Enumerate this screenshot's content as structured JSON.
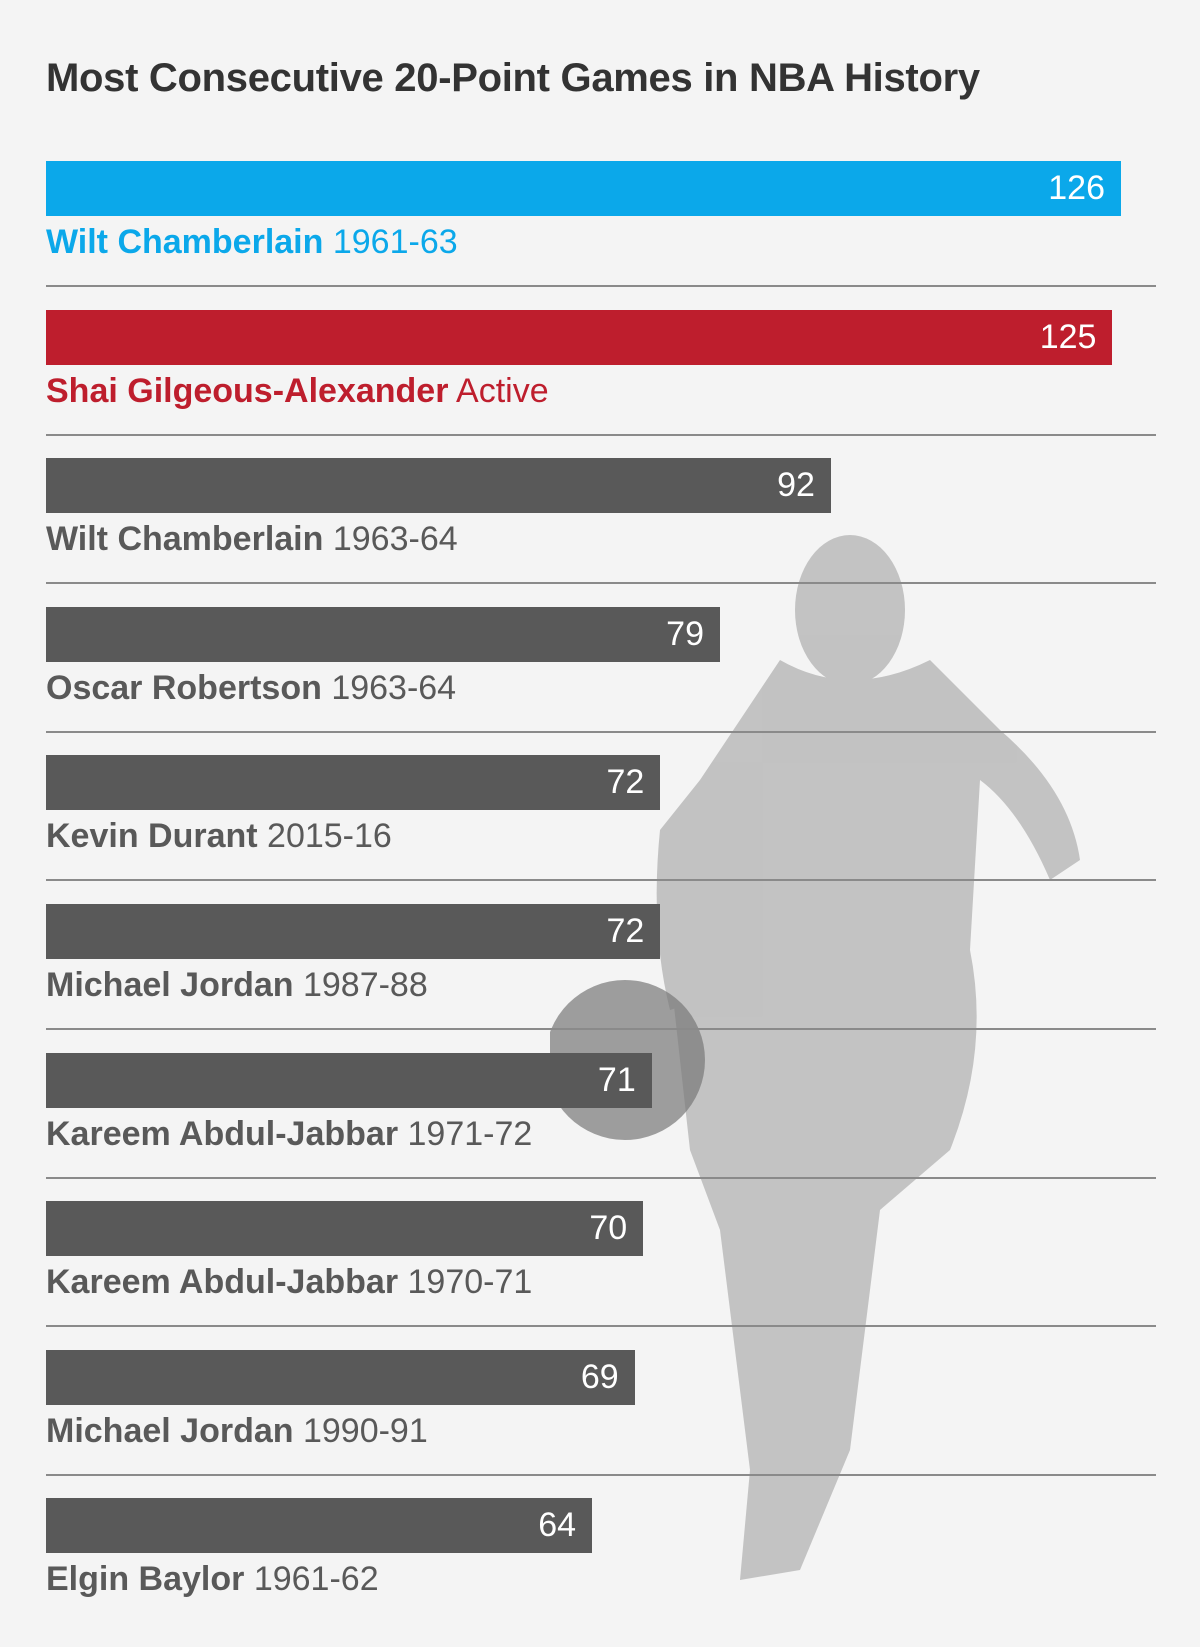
{
  "chart_data": {
    "type": "bar",
    "orientation": "horizontal",
    "title": "Most Consecutive 20-Point Games in NBA History",
    "categories": [
      {
        "player": "Wilt Chamberlain",
        "period": "1961-63"
      },
      {
        "player": "Shai Gilgeous-Alexander",
        "period": "Active"
      },
      {
        "player": "Wilt Chamberlain",
        "period": "1963-64"
      },
      {
        "player": "Oscar Robertson",
        "period": "1963-64"
      },
      {
        "player": "Kevin Durant",
        "period": "2015-16"
      },
      {
        "player": "Michael Jordan",
        "period": "1987-88"
      },
      {
        "player": "Kareem Abdul-Jabbar",
        "period": "1971-72"
      },
      {
        "player": "Kareem Abdul-Jabbar",
        "period": "1970-71"
      },
      {
        "player": "Michael Jordan",
        "period": "1990-91"
      },
      {
        "player": "Elgin Baylor",
        "period": "1961-62"
      }
    ],
    "values": [
      126,
      125,
      92,
      79,
      72,
      72,
      71,
      70,
      69,
      64
    ],
    "colors": [
      "#0ba8ea",
      "#be1e2d",
      "#595959",
      "#595959",
      "#595959",
      "#595959",
      "#595959",
      "#595959",
      "#595959",
      "#595959"
    ],
    "label_colors": [
      "#0ba8ea",
      "#be1e2d",
      "#595959",
      "#595959",
      "#595959",
      "#595959",
      "#595959",
      "#595959",
      "#595959",
      "#595959"
    ],
    "xlim": [
      0,
      126
    ],
    "grid": false
  },
  "image": "grayscale photo of basketball player dribbling in Oklahoma City jersey number 2"
}
